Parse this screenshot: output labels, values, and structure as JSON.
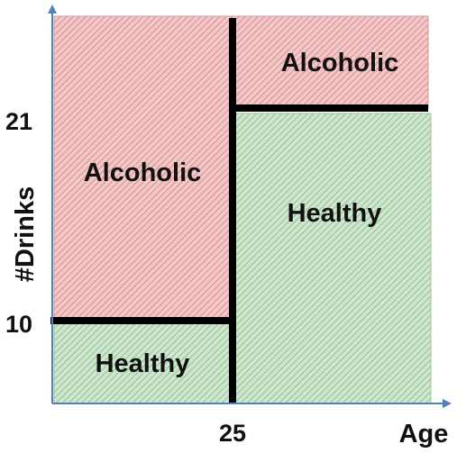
{
  "axes": {
    "x_label": "Age",
    "y_label": "#Drinks",
    "x_ticks": [
      {
        "value": 25,
        "label": "25"
      }
    ],
    "y_ticks": [
      {
        "value": 21,
        "label": "21"
      },
      {
        "value": 10,
        "label": "10"
      }
    ],
    "color": "#4f81bd"
  },
  "regions": [
    {
      "label": "Alcoholic",
      "class": "alcoholic",
      "age_range": [
        "min",
        25
      ],
      "drinks_range": [
        10,
        "max"
      ]
    },
    {
      "label": "Healthy",
      "class": "healthy",
      "age_range": [
        "min",
        25
      ],
      "drinks_range": [
        "min",
        10
      ]
    },
    {
      "label": "Alcoholic",
      "class": "alcoholic",
      "age_range": [
        25,
        "max"
      ],
      "drinks_range": [
        21,
        "max"
      ]
    },
    {
      "label": "Healthy",
      "class": "healthy",
      "age_range": [
        25,
        "max"
      ],
      "drinks_range": [
        "min",
        21
      ]
    }
  ],
  "colors": {
    "alcoholic_fill": "#f2c9c9",
    "alcoholic_hatch": "#d97a7a",
    "healthy_fill": "#cfe6cf",
    "healthy_hatch": "#7fb87f",
    "boundary": "#000000"
  }
}
